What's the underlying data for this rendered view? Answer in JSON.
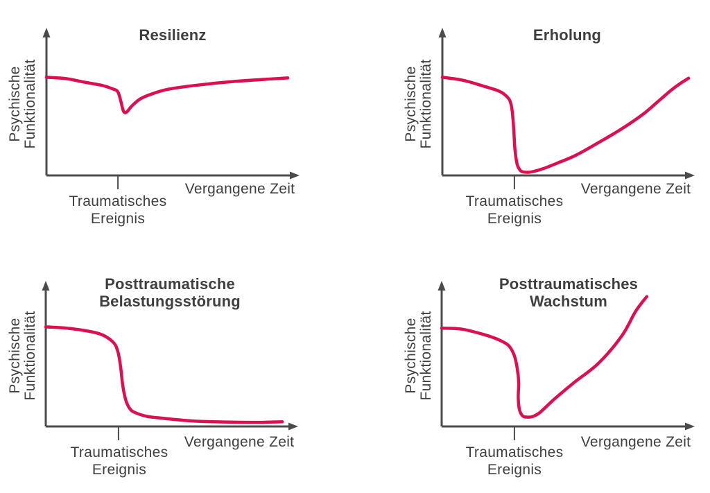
{
  "figure": {
    "description": "Four conceptual line charts of psychological functioning over time after a traumatic event",
    "background": "#ffffff"
  },
  "style": {
    "curve_color": "#da1150",
    "axis_color": "#4b4b4b",
    "text_color": "#3f3f3f"
  },
  "chart_data": [
    {
      "type": "line",
      "title": "Resilienz",
      "title_lines": [
        "Resilienz"
      ],
      "ylabel": "Psychische Funktionalität",
      "ylabel_lines": [
        "Psychische",
        "Funktionalität"
      ],
      "xlabel": "Vergangene Zeit",
      "event_label": "Traumatisches Ereignis",
      "event_label_lines": [
        "Traumatisches",
        "Ereignis"
      ],
      "event_x_pct": 28.4,
      "xlim": [
        0,
        100
      ],
      "ylim": [
        0,
        100
      ],
      "grid": false,
      "legend": false,
      "axes_style": "arrows, no tick values; single tick mark at traumatic event",
      "series": [
        {
          "name": "Psychische Funktionalität",
          "points_pct": [
            [
              0,
              66.5
            ],
            [
              8,
              65.5
            ],
            [
              14.6,
              63.3
            ],
            [
              22,
              61
            ],
            [
              26.5,
              58.5
            ],
            [
              28.4,
              56.5
            ],
            [
              29.6,
              50
            ],
            [
              30.6,
              43.5
            ],
            [
              31.8,
              42.8
            ],
            [
              33.9,
              47
            ],
            [
              37,
              51.5
            ],
            [
              40.8,
              54.5
            ],
            [
              47.7,
              58.1
            ],
            [
              58.7,
              60.9
            ],
            [
              75.2,
              63.7
            ],
            [
              95.9,
              66
            ]
          ]
        }
      ]
    },
    {
      "type": "line",
      "title": "Erholung",
      "title_lines": [
        "Erholung"
      ],
      "ylabel": "Psychische Funktionalität",
      "ylabel_lines": [
        "Psychische",
        "Funktionalität"
      ],
      "xlabel": "Vergangene Zeit",
      "event_label": "Traumatisches Ereignis",
      "event_label_lines": [
        "Traumatisches",
        "Ereignis"
      ],
      "event_x_pct": 28.7,
      "xlim": [
        0,
        100
      ],
      "ylim": [
        0,
        100
      ],
      "grid": false,
      "legend": false,
      "axes_style": "arrows, no tick values; single tick mark at traumatic event",
      "series": [
        {
          "name": "Psychische Funktionalität",
          "points_pct": [
            [
              0,
              66.5
            ],
            [
              8,
              64.5
            ],
            [
              16.3,
              60.5
            ],
            [
              22,
              57.5
            ],
            [
              24.6,
              55
            ],
            [
              26.8,
              51
            ],
            [
              27.8,
              44
            ],
            [
              28.4,
              32
            ],
            [
              28.9,
              18
            ],
            [
              29.8,
              7.5
            ],
            [
              31.2,
              3.2
            ],
            [
              32.9,
              2.2
            ],
            [
              35.5,
              2.4
            ],
            [
              40,
              4.5
            ],
            [
              46,
              8.5
            ],
            [
              53,
              13.5
            ],
            [
              62,
              22
            ],
            [
              71.5,
              31.6
            ],
            [
              80,
              41.5
            ],
            [
              85.4,
              49.3
            ],
            [
              91,
              57.5
            ],
            [
              95,
              62.5
            ],
            [
              98.1,
              65.8
            ]
          ]
        }
      ]
    },
    {
      "type": "line",
      "title": "Posttraumatische Belastungsstörung",
      "title_lines": [
        "Posttraumatische",
        "Belastungsstörung"
      ],
      "ylabel": "Psychische Funktionalität",
      "ylabel_lines": [
        "Psychische",
        "Funktionalität"
      ],
      "xlabel": "Vergangene Zeit",
      "event_label": "Traumatisches Ereignis",
      "event_label_lines": [
        "Traumatisches",
        "Ereignis"
      ],
      "event_x_pct": 28.9,
      "xlim": [
        0,
        100
      ],
      "ylim": [
        0,
        100
      ],
      "grid": false,
      "legend": false,
      "axes_style": "arrows, no tick values; single tick mark at traumatic event",
      "series": [
        {
          "name": "Psychische Funktionalität",
          "points_pct": [
            [
              0,
              68.4
            ],
            [
              10,
              67.2
            ],
            [
              21.2,
              63.7
            ],
            [
              26.7,
              58
            ],
            [
              28.7,
              51
            ],
            [
              29.8,
              40
            ],
            [
              30.6,
              28
            ],
            [
              31.9,
              17.5
            ],
            [
              33.5,
              12
            ],
            [
              35.5,
              9.5
            ],
            [
              40,
              7
            ],
            [
              44.3,
              6
            ],
            [
              55,
              4.2
            ],
            [
              62.5,
              3.4
            ],
            [
              75,
              2.9
            ],
            [
              85,
              2.8
            ],
            [
              94,
              3.2
            ]
          ]
        }
      ]
    },
    {
      "type": "line",
      "title": "Posttraumatisches Wachstum",
      "title_lines": [
        "Posttraumatisches",
        "Wachstum"
      ],
      "ylabel": "Psychische Funktionalität",
      "ylabel_lines": [
        "Psychische",
        "Funktionalität"
      ],
      "xlabel": "Vergangene Zeit",
      "event_label": "Traumatisches Ereignis",
      "event_label_lines": [
        "Traumatisches",
        "Ereignis"
      ],
      "event_x_pct": 28.9,
      "xlim": [
        0,
        100
      ],
      "ylim": [
        0,
        100
      ],
      "grid": false,
      "legend": false,
      "axes_style": "arrows, no tick values; single tick mark at traumatic event",
      "series": [
        {
          "name": "Psychische Funktionalität",
          "points_pct": [
            [
              0,
              67.5
            ],
            [
              8,
              66.8
            ],
            [
              16.6,
              63.2
            ],
            [
              22,
              60
            ],
            [
              26.5,
              55.7
            ],
            [
              28.8,
              49
            ],
            [
              30,
              40
            ],
            [
              30.6,
              30
            ],
            [
              30.4,
              20
            ],
            [
              30.9,
              11.5
            ],
            [
              32.2,
              7.2
            ],
            [
              34.2,
              6.4
            ],
            [
              36.2,
              6.8
            ],
            [
              39,
              9.5
            ],
            [
              44.2,
              17.9
            ],
            [
              52.5,
              30
            ],
            [
              62.3,
              43.4
            ],
            [
              71.6,
              62.3
            ],
            [
              77.1,
              79.2
            ],
            [
              81.5,
              89.2
            ]
          ]
        }
      ]
    }
  ]
}
